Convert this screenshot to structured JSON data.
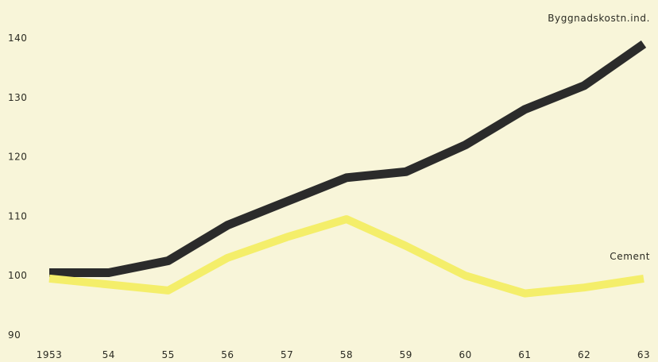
{
  "chart_data": {
    "type": "line",
    "x": [
      "1953",
      "54",
      "55",
      "56",
      "57",
      "58",
      "59",
      "60",
      "61",
      "62",
      "63"
    ],
    "ylim": [
      90,
      140
    ],
    "yticks": [
      90,
      100,
      110,
      120,
      130,
      140
    ],
    "grid": false,
    "series": [
      {
        "name": "Byggnadskostn.ind.",
        "color": "#2b2b2b",
        "values": [
          100.5,
          100.5,
          102.5,
          108.5,
          112.5,
          116.5,
          117.5,
          122,
          128,
          132,
          139
        ]
      },
      {
        "name": "Cement",
        "color": "#f4ee6a",
        "values": [
          99.5,
          98.5,
          97.5,
          103,
          106.5,
          109.5,
          105,
          100,
          97,
          98,
          99.5
        ]
      }
    ]
  }
}
